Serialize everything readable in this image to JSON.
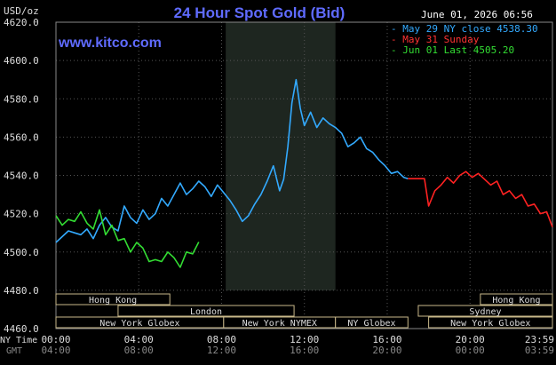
{
  "header": {
    "title": "24 Hour Spot Gold (Bid)",
    "unit_label": "USD/oz",
    "timestamp": "June 01, 2026 06:56",
    "site": "www.kitco.com"
  },
  "legend": [
    {
      "label": "May 29 NY close 4538.30",
      "color": "#33aaff"
    },
    {
      "label": "May 31 Sunday",
      "color": "#ff3333"
    },
    {
      "label": "Jun 01 Last 4505.20",
      "color": "#33dd33"
    }
  ],
  "x_axis": {
    "ny_time_label": "NY Time",
    "gmt_label": "GMT",
    "ticks": [
      {
        "ny": "00:00",
        "gmt": "04:00"
      },
      {
        "ny": "04:00",
        "gmt": "08:00"
      },
      {
        "ny": "08:00",
        "gmt": "12:00"
      },
      {
        "ny": "12:00",
        "gmt": "16:00"
      },
      {
        "ny": "16:00",
        "gmt": "20:00"
      },
      {
        "ny": "20:00",
        "gmt": "00:00"
      },
      {
        "ny": "23:59",
        "gmt": "03:59"
      }
    ]
  },
  "sessions": {
    "row1": [
      {
        "label": "Hong Kong",
        "start": 0,
        "end": 5.5
      },
      {
        "label": "Hong Kong",
        "start": 20.5,
        "end": 23.98
      }
    ],
    "row2": [
      {
        "label": "London",
        "start": 3,
        "end": 11.5
      },
      {
        "label": "Sydney",
        "start": 17.5,
        "end": 23.98
      }
    ],
    "row3": [
      {
        "label": "New York Globex",
        "start": 0,
        "end": 8.1
      },
      {
        "label": "New York NYMEX",
        "start": 8.1,
        "end": 13.5
      },
      {
        "label": "NY Globex",
        "start": 13.5,
        "end": 17.0
      },
      {
        "label": "New York Globex",
        "start": 18.0,
        "end": 23.98
      }
    ]
  },
  "chart_data": {
    "type": "line",
    "title": "24 Hour Spot Gold (Bid)",
    "ylabel": "USD/oz",
    "ylim": [
      4460,
      4620
    ],
    "xlim": [
      0,
      23.98
    ],
    "y_ticks": [
      4460.0,
      4480.0,
      4500.0,
      4520.0,
      4540.0,
      4560.0,
      4580.0,
      4600.0,
      4620.0
    ],
    "y_tick_labels": [
      "4460.0",
      "4480.0",
      "4500.0",
      "4520.0",
      "4540.0",
      "4560.0",
      "4580.0",
      "4600.0",
      "4620.0"
    ],
    "highlight_band": [
      8.2,
      13.5
    ],
    "grid": true,
    "legend_position": "top-right",
    "series": [
      {
        "name": "May 29 NY close 4538.30",
        "color": "#33aaff",
        "x": [
          0,
          0.3,
          0.6,
          0.9,
          1.2,
          1.5,
          1.8,
          2.1,
          2.4,
          2.7,
          3.0,
          3.3,
          3.6,
          3.9,
          4.2,
          4.5,
          4.8,
          5.1,
          5.4,
          5.7,
          6.0,
          6.3,
          6.6,
          6.9,
          7.2,
          7.5,
          7.8,
          8.1,
          8.4,
          8.7,
          9.0,
          9.3,
          9.6,
          9.9,
          10.2,
          10.5,
          10.8,
          11.0,
          11.2,
          11.4,
          11.6,
          11.8,
          12.0,
          12.3,
          12.6,
          12.9,
          13.2,
          13.5,
          13.8,
          14.1,
          14.4,
          14.7,
          15.0,
          15.3,
          15.6,
          15.9,
          16.2,
          16.5,
          16.8,
          17.0
        ],
        "y": [
          4505,
          4508,
          4511,
          4510,
          4509,
          4512,
          4507,
          4514,
          4518,
          4513,
          4511,
          4524,
          4518,
          4515,
          4522,
          4517,
          4520,
          4528,
          4524,
          4530,
          4536,
          4530,
          4533,
          4537,
          4534,
          4529,
          4535,
          4531,
          4527,
          4522,
          4516,
          4519,
          4525,
          4530,
          4537,
          4545,
          4532,
          4538,
          4555,
          4578,
          4590,
          4575,
          4566,
          4573,
          4565,
          4570,
          4567,
          4565,
          4562,
          4555,
          4557,
          4560,
          4554,
          4552,
          4548,
          4545,
          4541,
          4542,
          4539,
          4538.3
        ]
      },
      {
        "name": "May 31 Sunday",
        "color": "#ff2222",
        "x": [
          17.0,
          17.4,
          17.8,
          18.0,
          18.3,
          18.6,
          18.9,
          19.2,
          19.5,
          19.8,
          20.1,
          20.4,
          20.7,
          21.0,
          21.3,
          21.6,
          21.9,
          22.2,
          22.5,
          22.8,
          23.1,
          23.4,
          23.7,
          23.98
        ],
        "y": [
          4538.3,
          4538.3,
          4538.3,
          4524,
          4532,
          4535,
          4539,
          4536,
          4540,
          4542,
          4539,
          4541,
          4538,
          4535,
          4537,
          4530,
          4532,
          4528,
          4530,
          4524,
          4525,
          4520,
          4521,
          4513
        ]
      },
      {
        "name": "Jun 01 Last 4505.20",
        "color": "#33dd33",
        "x": [
          0,
          0.3,
          0.6,
          0.9,
          1.2,
          1.5,
          1.8,
          2.1,
          2.4,
          2.7,
          3.0,
          3.3,
          3.6,
          3.9,
          4.2,
          4.5,
          4.8,
          5.1,
          5.4,
          5.7,
          6.0,
          6.3,
          6.6,
          6.9
        ],
        "y": [
          4519,
          4514,
          4517,
          4516,
          4521,
          4515,
          4512,
          4522,
          4509,
          4514,
          4506,
          4507,
          4500,
          4505,
          4502,
          4495,
          4496,
          4495,
          4500,
          4497,
          4492,
          4500,
          4499,
          4505.2
        ]
      }
    ]
  }
}
